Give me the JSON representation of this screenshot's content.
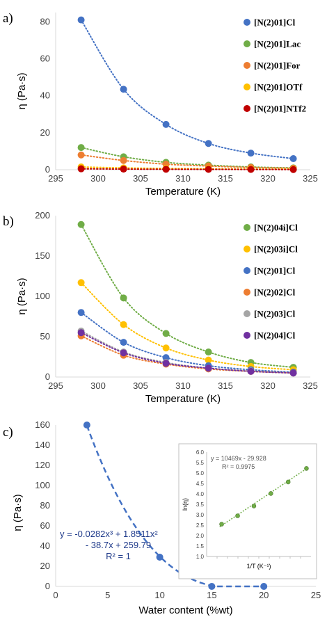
{
  "chart_data": [
    {
      "type": "scatter",
      "panel": "a)",
      "xlabel": "Temperature (K)",
      "ylabel": "η (Pa·s)",
      "xlim": [
        295,
        325
      ],
      "ylim": [
        0,
        85
      ],
      "xticks": [
        295,
        300,
        305,
        310,
        315,
        320,
        325
      ],
      "yticks": [
        0,
        20,
        40,
        60,
        80
      ],
      "legend_position": "right",
      "grid": false,
      "series": [
        {
          "name": "[N(2)01]Cl",
          "color": "#4472c4",
          "x": [
            298,
            303,
            308,
            313,
            318,
            323
          ],
          "y": [
            81,
            43.5,
            24.5,
            14.2,
            9,
            6
          ]
        },
        {
          "name": "[N(2)01]Lac",
          "color": "#70ad47",
          "x": [
            298,
            303,
            308,
            313,
            318,
            323
          ],
          "y": [
            12,
            7,
            4,
            2.5,
            1.5,
            1
          ]
        },
        {
          "name": "[N(2)01]For",
          "color": "#ed7d31",
          "x": [
            298,
            303,
            308,
            313,
            318,
            323
          ],
          "y": [
            8,
            5,
            3,
            2,
            1.2,
            0.8
          ]
        },
        {
          "name": "[N(2)01]OTf",
          "color": "#ffc000",
          "x": [
            298,
            303,
            308,
            313,
            318,
            323
          ],
          "y": [
            1.5,
            1,
            0.7,
            0.5,
            0.35,
            0.25
          ]
        },
        {
          "name": "[N(2)01]NTf2",
          "color": "#c00000",
          "x": [
            298,
            303,
            308,
            313,
            318,
            323
          ],
          "y": [
            0.5,
            0.35,
            0.25,
            0.2,
            0.15,
            0.1
          ]
        }
      ]
    },
    {
      "type": "scatter",
      "panel": "b)",
      "xlabel": "Temperature (K)",
      "ylabel": "η (Pa·s)",
      "xlim": [
        295,
        325
      ],
      "ylim": [
        0,
        200
      ],
      "xticks": [
        295,
        300,
        305,
        310,
        315,
        320,
        325
      ],
      "yticks": [
        0,
        50,
        100,
        150,
        200
      ],
      "legend_position": "right",
      "grid": false,
      "series": [
        {
          "name": "[N(2)04i]Cl",
          "color": "#70ad47",
          "x": [
            298,
            303,
            308,
            313,
            318,
            323
          ],
          "y": [
            189,
            98,
            54,
            31,
            18,
            12
          ]
        },
        {
          "name": "[N(2)03i]Cl",
          "color": "#ffc000",
          "x": [
            298,
            303,
            308,
            313,
            318,
            323
          ],
          "y": [
            117,
            65,
            36,
            21,
            13,
            9
          ]
        },
        {
          "name": "[N(2)01]Cl",
          "color": "#4472c4",
          "x": [
            298,
            303,
            308,
            313,
            318,
            323
          ],
          "y": [
            80,
            43,
            24,
            14,
            9,
            6
          ]
        },
        {
          "name": "[N(2)02]Cl",
          "color": "#ed7d31",
          "x": [
            298,
            303,
            308,
            313,
            318,
            323
          ],
          "y": [
            51,
            27,
            16,
            10,
            7,
            5
          ]
        },
        {
          "name": "[N(2)03]Cl",
          "color": "#a5a5a5",
          "x": [
            298,
            303,
            308,
            313,
            318,
            323
          ],
          "y": [
            57,
            31,
            18,
            11,
            7.5,
            5
          ]
        },
        {
          "name": "[N(2)04]Cl",
          "color": "#7030a0",
          "x": [
            298,
            303,
            308,
            313,
            318,
            323
          ],
          "y": [
            55,
            30,
            17,
            11,
            7,
            5
          ]
        }
      ]
    },
    {
      "type": "scatter",
      "panel": "c)",
      "xlabel": "Water content (%wt)",
      "ylabel": "η (Pa·s)",
      "xlim": [
        0,
        25
      ],
      "ylim": [
        0,
        160
      ],
      "xticks": [
        0,
        5,
        10,
        15,
        20,
        25
      ],
      "yticks": [
        0,
        20,
        40,
        60,
        80,
        100,
        120,
        140,
        160
      ],
      "grid": false,
      "series": [
        {
          "color": "#4472c4",
          "x": [
            3,
            10,
            15,
            20
          ],
          "y": [
            160,
            29,
            0,
            0
          ]
        }
      ],
      "trendline": {
        "equation": [
          "y = -0.0282x³ + 1.8511x²",
          "- 38.7x + 259.79"
        ],
        "r2": "R² = 1",
        "coefficients": [
          -0.0282,
          1.8511,
          -38.7,
          259.79
        ]
      },
      "inset": {
        "type": "scatter",
        "xlabel": "1/T (K⁻¹)",
        "ylabel": "ln(η)",
        "ylim": [
          1.0,
          6.0
        ],
        "yticks": [
          "1.0",
          "1.5",
          "2.0",
          "2.5",
          "3.0",
          "3.5",
          "4.0",
          "4.5",
          "5.0",
          "5.5",
          "6.0"
        ],
        "equation": "y = 10469x - 29.928",
        "r2": "R² = 0.9975",
        "color": "#70ad47",
        "x": [
          0.003096,
          0.003145,
          0.003195,
          0.003247,
          0.0033,
          0.003356
        ],
        "y": [
          2.55,
          2.95,
          3.42,
          4.02,
          4.57,
          5.22
        ]
      }
    }
  ]
}
